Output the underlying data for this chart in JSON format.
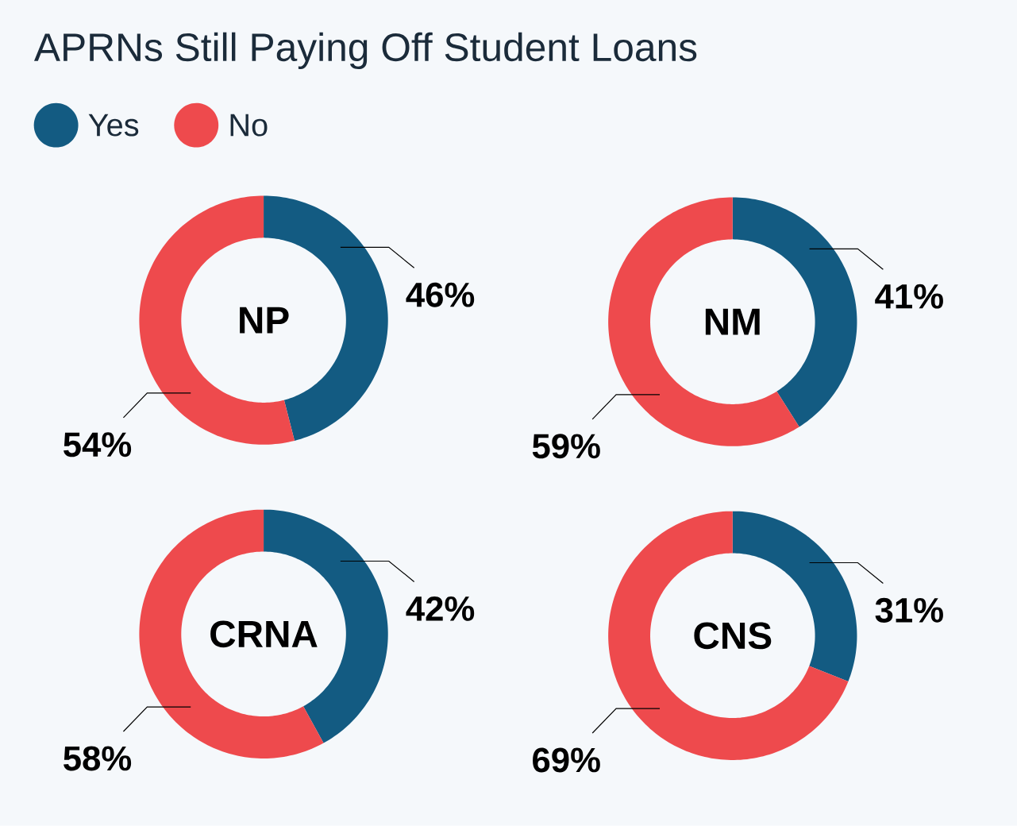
{
  "chart_data": [
    {
      "type": "donut",
      "title": "APRNs Still Paying Off Student Loans",
      "legend": "top left",
      "categories": [
        "Yes",
        "No"
      ],
      "values": [
        46,
        54
      ],
      "colors": [
        "#135b82",
        "#ee4a4d"
      ],
      "value_labels": [
        "46%",
        "54%"
      ],
      "annotations": [
        "NP"
      ]
    },
    {
      "type": "donut",
      "values": [
        41,
        59
      ],
      "colors": [
        "#135b82",
        "#ee4a4d"
      ],
      "value_labels": [
        "41%",
        "59%"
      ],
      "annotations": [
        "NM"
      ]
    },
    {
      "type": "donut",
      "values": [
        42,
        58
      ],
      "colors": [
        "#135b82",
        "#ee4a4d"
      ],
      "value_labels": [
        "42%",
        "58%"
      ],
      "annotations": [
        "CRNA"
      ]
    },
    {
      "type": "donut",
      "values": [
        31,
        69
      ],
      "colors": [
        "#135b82",
        "#ee4a4d"
      ],
      "value_labels": [
        "31%",
        "69%"
      ],
      "annotations": [
        "CNS"
      ]
    }
  ]
}
